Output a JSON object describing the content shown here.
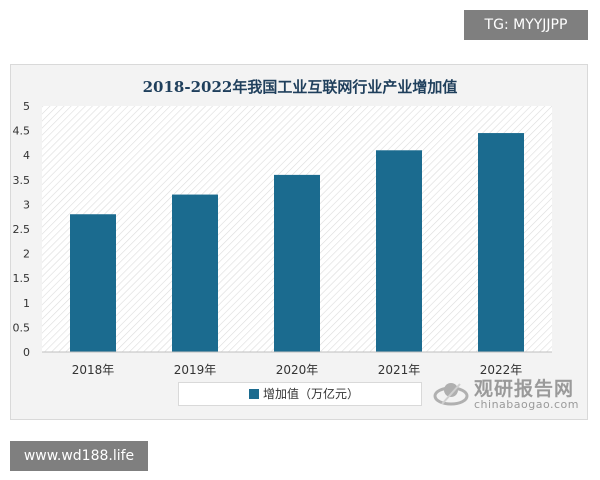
{
  "chart_data": {
    "type": "bar",
    "title": "2018-2022年我国工业互联网行业产业增加值",
    "categories": [
      "2018年",
      "2019年",
      "2020年",
      "2021年",
      "2022年"
    ],
    "series": [
      {
        "name": "增加值（万亿元）",
        "values": [
          2.8,
          3.2,
          3.6,
          4.1,
          4.45
        ]
      }
    ],
    "ylim": [
      0,
      5
    ],
    "yticks": [
      "0",
      "0.5",
      "1",
      "1.5",
      "2",
      "2.5",
      "3",
      "3.5",
      "4",
      "4.5",
      "5"
    ],
    "legend_position": "bottom",
    "bar_color": "#1b6b8f",
    "grid": false
  },
  "watermarks": {
    "top_right": "TG: MYYJJPP",
    "bottom_left": "www.wd188.life",
    "brand_main": "观研报告网",
    "brand_sub": "chinabaogao.com"
  }
}
